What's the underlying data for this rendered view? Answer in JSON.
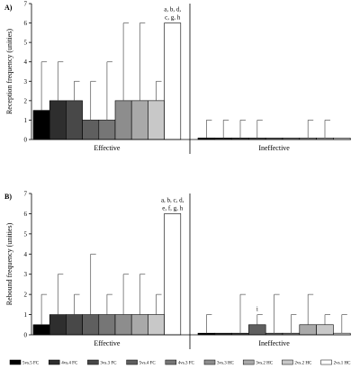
{
  "chart_data": [
    {
      "panel_label": "A)",
      "type": "bar",
      "ylabel": "Reception frequency (unities)",
      "ylim": [
        0,
        7
      ],
      "yticks": [
        0,
        1,
        2,
        3,
        4,
        5,
        6,
        7
      ],
      "groups": [
        "Effective",
        "Ineffective"
      ],
      "series": [
        {
          "name": "5vs.5 FC",
          "color": "#000000",
          "values": [
            1.5,
            0.08
          ],
          "err_upper": [
            4,
            1
          ]
        },
        {
          "name": "4vs.4 FC",
          "color": "#2e2e2e",
          "values": [
            2,
            0.08
          ],
          "err_upper": [
            4,
            1
          ]
        },
        {
          "name": "3vs.3 FC",
          "color": "#484848",
          "values": [
            2,
            0.08
          ],
          "err_upper": [
            3,
            1
          ]
        },
        {
          "name": "5vs.4 FC",
          "color": "#5f5f5f",
          "values": [
            1,
            0.08
          ],
          "err_upper": [
            3,
            1
          ]
        },
        {
          "name": "4vs.3 FC",
          "color": "#767676",
          "values": [
            1,
            0.08
          ],
          "err_upper": [
            4,
            0.08
          ]
        },
        {
          "name": "3vs.3 HC",
          "color": "#8d8d8d",
          "values": [
            2,
            0.08
          ],
          "err_upper": [
            6,
            0.08
          ]
        },
        {
          "name": "3vs.2 HC",
          "color": "#a9a9a9",
          "values": [
            2,
            0.08
          ],
          "err_upper": [
            6,
            1
          ]
        },
        {
          "name": "2vs.2 HC",
          "color": "#c8c8c8",
          "values": [
            2,
            0.08
          ],
          "err_upper": [
            3,
            1
          ]
        },
        {
          "name": "2vs.1 HC",
          "color": "#ffffff",
          "values": [
            6,
            0.08
          ],
          "err_upper": [
            6,
            0.08
          ]
        }
      ],
      "annotations": [
        {
          "group": "Effective",
          "series": "2vs.1 HC",
          "lines": [
            "a, b, d,",
            "c, g, h"
          ]
        }
      ]
    },
    {
      "panel_label": "B)",
      "type": "bar",
      "ylabel": "Rebound frequency (unities)",
      "ylim": [
        0,
        7
      ],
      "yticks": [
        0,
        1,
        2,
        3,
        4,
        5,
        6,
        7
      ],
      "groups": [
        "Effective",
        "Ineffective"
      ],
      "series": [
        {
          "name": "5vs.5 FC",
          "color": "#000000",
          "values": [
            0.5,
            0.08
          ],
          "err_upper": [
            2,
            1
          ]
        },
        {
          "name": "4vs.4 FC",
          "color": "#2e2e2e",
          "values": [
            1,
            0.08
          ],
          "err_upper": [
            3,
            0.08
          ]
        },
        {
          "name": "3vs.3 FC",
          "color": "#484848",
          "values": [
            1,
            0.08
          ],
          "err_upper": [
            2,
            2
          ]
        },
        {
          "name": "5vs.4 FC",
          "color": "#5f5f5f",
          "values": [
            1,
            0.5
          ],
          "err_upper": [
            4,
            1
          ]
        },
        {
          "name": "4vs.3 FC",
          "color": "#767676",
          "values": [
            1,
            0.08
          ],
          "err_upper": [
            2,
            2
          ]
        },
        {
          "name": "3vs.3 HC",
          "color": "#8d8d8d",
          "values": [
            1,
            0.08
          ],
          "err_upper": [
            3,
            1
          ]
        },
        {
          "name": "3vs.2 HC",
          "color": "#a9a9a9",
          "values": [
            1,
            0.5
          ],
          "err_upper": [
            3,
            2
          ]
        },
        {
          "name": "2vs.2 HC",
          "color": "#c8c8c8",
          "values": [
            1,
            0.5
          ],
          "err_upper": [
            2,
            1
          ]
        },
        {
          "name": "2vs.1 HC",
          "color": "#ffffff",
          "values": [
            6,
            0.08
          ],
          "err_upper": [
            6,
            1
          ]
        }
      ],
      "annotations": [
        {
          "group": "Effective",
          "series": "2vs.1 HC",
          "lines": [
            "a, b, c, d,",
            "e, f, g, h"
          ]
        },
        {
          "group": "Ineffective",
          "series": "5vs.4 FC",
          "lines": [
            "i"
          ]
        }
      ]
    }
  ],
  "legend": {
    "placement": "bottom",
    "items": [
      {
        "label": "5vs.5 FC",
        "color": "#000000"
      },
      {
        "label": "4vs.4 FC",
        "color": "#2e2e2e"
      },
      {
        "label": "3vs.3 FC",
        "color": "#484848"
      },
      {
        "label": "5vs.4 FC",
        "color": "#5f5f5f"
      },
      {
        "label": "4vs.3 FC",
        "color": "#767676"
      },
      {
        "label": "3vs.3 HC",
        "color": "#8d8d8d"
      },
      {
        "label": "3vs.2 HC",
        "color": "#a9a9a9"
      },
      {
        "label": "2vs.2 HC",
        "color": "#c8c8c8"
      },
      {
        "label": "2vs.1 HC",
        "color": "#ffffff"
      }
    ]
  }
}
